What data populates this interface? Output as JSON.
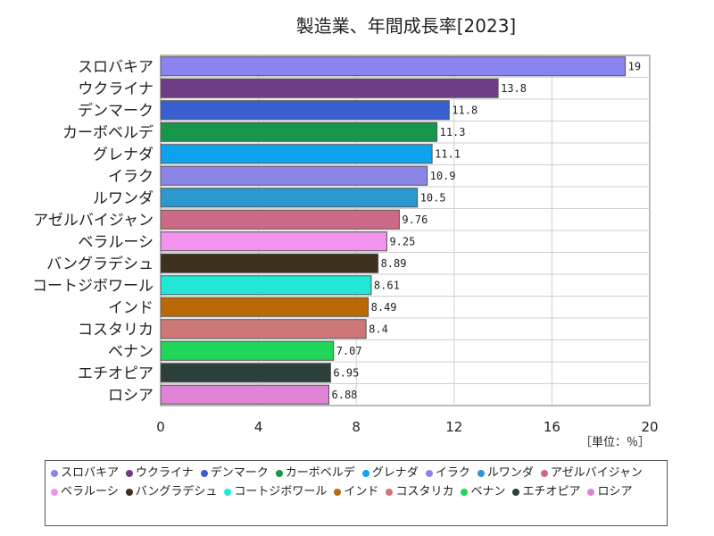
{
  "chart_data": {
    "type": "bar",
    "orientation": "horizontal",
    "title": "製造業、年間成長率[2023]",
    "unit_label": "［単位：％］",
    "categories": [
      "スロバキア",
      "ウクライナ",
      "デンマーク",
      "カーボベルデ",
      "グレナダ",
      "イラク",
      "ルワンダ",
      "アゼルバイジャン",
      "ベラルーシ",
      "バングラデシュ",
      "コートジボワール",
      "インド",
      "コスタリカ",
      "ベナン",
      "エチオピア",
      "ロシア"
    ],
    "values": [
      19,
      13.8,
      11.8,
      11.3,
      11.1,
      10.9,
      10.5,
      9.76,
      9.25,
      8.89,
      8.61,
      8.49,
      8.4,
      7.07,
      6.95,
      6.88
    ],
    "value_labels": [
      "19",
      "13.8",
      "11.8",
      "11.3",
      "11.1",
      "10.9",
      "10.5",
      "9.76",
      "9.25",
      "8.89",
      "8.61",
      "8.49",
      "8.4",
      "7.07",
      "6.95",
      "6.88"
    ],
    "colors": [
      "#8a84f0",
      "#6e3d86",
      "#3a5fd0",
      "#17954a",
      "#0ea3ec",
      "#8b86e6",
      "#2b98cf",
      "#cc6a86",
      "#f293ee",
      "#3d311e",
      "#21e8d6",
      "#b96a07",
      "#cd7777",
      "#1fd65a",
      "#2c3f3b",
      "#e082d6"
    ],
    "xlim": [
      0,
      20
    ],
    "xticks": [
      0,
      4,
      8,
      12,
      16,
      20
    ],
    "grid": true,
    "legend_position": "bottom"
  }
}
